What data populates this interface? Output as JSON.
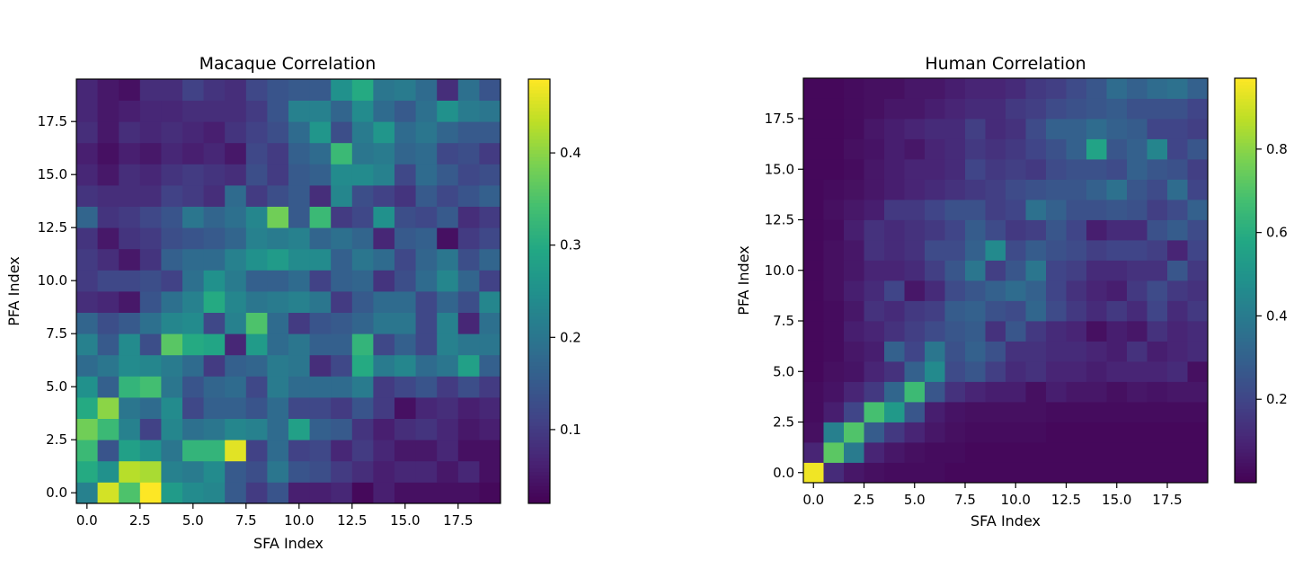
{
  "chart_data": [
    {
      "type": "heatmap",
      "title": "Macaque Correlation",
      "xlabel": "SFA Index",
      "ylabel": "PFA Index",
      "x_range": [
        -0.5,
        19.5
      ],
      "y_range": [
        -0.5,
        19.5
      ],
      "xticks": [
        0.0,
        2.5,
        5.0,
        7.5,
        10.0,
        12.5,
        15.0,
        17.5
      ],
      "xtick_labels": [
        "0.0",
        "2.5",
        "5.0",
        "7.5",
        "10.0",
        "12.5",
        "15.0",
        "17.5"
      ],
      "yticks": [
        0.0,
        2.5,
        5.0,
        7.5,
        10.0,
        12.5,
        15.0,
        17.5
      ],
      "ytick_labels": [
        "0.0",
        "2.5",
        "5.0",
        "7.5",
        "10.0",
        "12.5",
        "15.0",
        "17.5"
      ],
      "colormap": "viridis",
      "vmin": 0.02,
      "vmax": 0.48,
      "colorbar_ticks": [
        0.1,
        0.2,
        0.3,
        0.4
      ],
      "colorbar_tick_labels": [
        "0.1",
        "0.2",
        "0.3",
        "0.4"
      ],
      "rows_note": "rows listed from PFA index 0 upward; each row holds SFA index 0..19",
      "values": [
        [
          0.22,
          0.45,
          0.35,
          0.48,
          0.27,
          0.24,
          0.23,
          0.15,
          0.1,
          0.14,
          0.06,
          0.06,
          0.07,
          0.03,
          0.06,
          0.04,
          0.04,
          0.04,
          0.04,
          0.03
        ],
        [
          0.3,
          0.25,
          0.43,
          0.42,
          0.22,
          0.21,
          0.24,
          0.15,
          0.13,
          0.2,
          0.14,
          0.13,
          0.1,
          0.08,
          0.06,
          0.07,
          0.07,
          0.05,
          0.07,
          0.04
        ],
        [
          0.33,
          0.14,
          0.28,
          0.25,
          0.2,
          0.32,
          0.32,
          0.46,
          0.11,
          0.18,
          0.11,
          0.12,
          0.07,
          0.1,
          0.07,
          0.05,
          0.05,
          0.07,
          0.04,
          0.04
        ],
        [
          0.38,
          0.33,
          0.22,
          0.11,
          0.23,
          0.19,
          0.2,
          0.23,
          0.22,
          0.18,
          0.28,
          0.16,
          0.15,
          0.09,
          0.06,
          0.08,
          0.09,
          0.07,
          0.05,
          0.06
        ],
        [
          0.3,
          0.4,
          0.2,
          0.18,
          0.24,
          0.12,
          0.16,
          0.16,
          0.14,
          0.18,
          0.12,
          0.12,
          0.1,
          0.14,
          0.1,
          0.04,
          0.07,
          0.08,
          0.06,
          0.07
        ],
        [
          0.25,
          0.16,
          0.32,
          0.34,
          0.2,
          0.14,
          0.17,
          0.18,
          0.12,
          0.21,
          0.18,
          0.18,
          0.18,
          0.21,
          0.1,
          0.12,
          0.14,
          0.1,
          0.13,
          0.1
        ],
        [
          0.18,
          0.2,
          0.24,
          0.23,
          0.21,
          0.18,
          0.1,
          0.16,
          0.17,
          0.21,
          0.2,
          0.08,
          0.12,
          0.3,
          0.21,
          0.23,
          0.18,
          0.2,
          0.28,
          0.16
        ],
        [
          0.22,
          0.15,
          0.24,
          0.13,
          0.36,
          0.3,
          0.29,
          0.07,
          0.27,
          0.18,
          0.2,
          0.16,
          0.16,
          0.32,
          0.12,
          0.16,
          0.12,
          0.22,
          0.2,
          0.2
        ],
        [
          0.17,
          0.13,
          0.15,
          0.19,
          0.23,
          0.24,
          0.12,
          0.22,
          0.35,
          0.18,
          0.1,
          0.14,
          0.15,
          0.17,
          0.2,
          0.2,
          0.12,
          0.22,
          0.07,
          0.19
        ],
        [
          0.08,
          0.07,
          0.05,
          0.14,
          0.19,
          0.22,
          0.3,
          0.23,
          0.2,
          0.21,
          0.22,
          0.2,
          0.1,
          0.15,
          0.18,
          0.18,
          0.12,
          0.17,
          0.13,
          0.23
        ],
        [
          0.1,
          0.12,
          0.12,
          0.13,
          0.11,
          0.19,
          0.25,
          0.21,
          0.16,
          0.16,
          0.18,
          0.11,
          0.16,
          0.17,
          0.09,
          0.13,
          0.18,
          0.23,
          0.17,
          0.11
        ],
        [
          0.1,
          0.08,
          0.05,
          0.09,
          0.16,
          0.18,
          0.18,
          0.22,
          0.25,
          0.27,
          0.24,
          0.24,
          0.16,
          0.2,
          0.18,
          0.12,
          0.17,
          0.2,
          0.13,
          0.17
        ],
        [
          0.09,
          0.05,
          0.09,
          0.1,
          0.13,
          0.14,
          0.15,
          0.17,
          0.22,
          0.21,
          0.22,
          0.17,
          0.19,
          0.17,
          0.07,
          0.15,
          0.16,
          0.04,
          0.1,
          0.12
        ],
        [
          0.17,
          0.09,
          0.1,
          0.12,
          0.14,
          0.2,
          0.17,
          0.19,
          0.23,
          0.38,
          0.15,
          0.33,
          0.1,
          0.12,
          0.25,
          0.13,
          0.12,
          0.15,
          0.08,
          0.1
        ],
        [
          0.09,
          0.08,
          0.08,
          0.08,
          0.11,
          0.1,
          0.08,
          0.18,
          0.1,
          0.13,
          0.15,
          0.08,
          0.23,
          0.13,
          0.11,
          0.09,
          0.15,
          0.12,
          0.14,
          0.16
        ],
        [
          0.07,
          0.05,
          0.08,
          0.07,
          0.09,
          0.1,
          0.09,
          0.08,
          0.13,
          0.1,
          0.15,
          0.16,
          0.24,
          0.24,
          0.22,
          0.12,
          0.18,
          0.15,
          0.12,
          0.13
        ],
        [
          0.06,
          0.04,
          0.06,
          0.05,
          0.07,
          0.06,
          0.07,
          0.05,
          0.12,
          0.1,
          0.16,
          0.18,
          0.33,
          0.2,
          0.21,
          0.17,
          0.18,
          0.12,
          0.13,
          0.1
        ],
        [
          0.08,
          0.05,
          0.08,
          0.07,
          0.08,
          0.07,
          0.06,
          0.09,
          0.11,
          0.13,
          0.18,
          0.26,
          0.13,
          0.21,
          0.26,
          0.18,
          0.2,
          0.17,
          0.15,
          0.15
        ],
        [
          0.07,
          0.05,
          0.06,
          0.07,
          0.07,
          0.08,
          0.08,
          0.08,
          0.1,
          0.14,
          0.22,
          0.22,
          0.17,
          0.24,
          0.18,
          0.15,
          0.19,
          0.25,
          0.21,
          0.2
        ],
        [
          0.07,
          0.05,
          0.04,
          0.08,
          0.08,
          0.11,
          0.09,
          0.08,
          0.12,
          0.14,
          0.15,
          0.15,
          0.25,
          0.3,
          0.2,
          0.21,
          0.18,
          0.08,
          0.19,
          0.14
        ]
      ]
    },
    {
      "type": "heatmap",
      "title": "Human Correlation",
      "xlabel": "SFA Index",
      "ylabel": "PFA Index",
      "x_range": [
        -0.5,
        19.5
      ],
      "y_range": [
        -0.5,
        19.5
      ],
      "xticks": [
        0.0,
        2.5,
        5.0,
        7.5,
        10.0,
        12.5,
        15.0,
        17.5
      ],
      "xtick_labels": [
        "0.0",
        "2.5",
        "5.0",
        "7.5",
        "10.0",
        "12.5",
        "15.0",
        "17.5"
      ],
      "yticks": [
        0.0,
        2.5,
        5.0,
        7.5,
        10.0,
        12.5,
        15.0,
        17.5
      ],
      "ytick_labels": [
        "0.0",
        "2.5",
        "5.0",
        "7.5",
        "10.0",
        "12.5",
        "15.0",
        "17.5"
      ],
      "colormap": "viridis",
      "vmin": 0.0,
      "vmax": 0.97,
      "colorbar_ticks": [
        0.2,
        0.4,
        0.6,
        0.8
      ],
      "colorbar_tick_labels": [
        "0.2",
        "0.4",
        "0.6",
        "0.8"
      ],
      "rows_note": "rows listed from PFA index 0 upward; each row holds SFA index 0..19",
      "values": [
        [
          0.95,
          0.12,
          0.06,
          0.04,
          0.03,
          0.03,
          0.03,
          0.02,
          0.02,
          0.02,
          0.02,
          0.02,
          0.02,
          0.02,
          0.02,
          0.02,
          0.02,
          0.02,
          0.02,
          0.02
        ],
        [
          0.1,
          0.72,
          0.4,
          0.1,
          0.06,
          0.04,
          0.03,
          0.03,
          0.02,
          0.02,
          0.02,
          0.02,
          0.02,
          0.02,
          0.02,
          0.02,
          0.02,
          0.02,
          0.02,
          0.02
        ],
        [
          0.04,
          0.42,
          0.7,
          0.28,
          0.16,
          0.1,
          0.06,
          0.04,
          0.03,
          0.03,
          0.03,
          0.03,
          0.02,
          0.02,
          0.02,
          0.02,
          0.02,
          0.02,
          0.02,
          0.02
        ],
        [
          0.03,
          0.08,
          0.2,
          0.68,
          0.52,
          0.26,
          0.08,
          0.05,
          0.04,
          0.04,
          0.04,
          0.04,
          0.03,
          0.03,
          0.03,
          0.03,
          0.03,
          0.03,
          0.03,
          0.03
        ],
        [
          0.03,
          0.05,
          0.1,
          0.16,
          0.32,
          0.66,
          0.26,
          0.14,
          0.1,
          0.08,
          0.08,
          0.04,
          0.08,
          0.06,
          0.06,
          0.04,
          0.06,
          0.05,
          0.06,
          0.06
        ],
        [
          0.02,
          0.04,
          0.05,
          0.1,
          0.14,
          0.3,
          0.46,
          0.22,
          0.26,
          0.18,
          0.12,
          0.14,
          0.1,
          0.1,
          0.08,
          0.1,
          0.1,
          0.1,
          0.12,
          0.04
        ],
        [
          0.02,
          0.03,
          0.06,
          0.08,
          0.3,
          0.2,
          0.38,
          0.24,
          0.3,
          0.24,
          0.14,
          0.14,
          0.12,
          0.12,
          0.1,
          0.08,
          0.14,
          0.08,
          0.1,
          0.12
        ],
        [
          0.02,
          0.03,
          0.08,
          0.1,
          0.14,
          0.18,
          0.22,
          0.26,
          0.28,
          0.14,
          0.26,
          0.16,
          0.12,
          0.1,
          0.04,
          0.08,
          0.06,
          0.14,
          0.1,
          0.12
        ],
        [
          0.02,
          0.03,
          0.06,
          0.14,
          0.12,
          0.16,
          0.18,
          0.28,
          0.3,
          0.24,
          0.22,
          0.32,
          0.22,
          0.16,
          0.12,
          0.16,
          0.12,
          0.2,
          0.12,
          0.16
        ],
        [
          0.02,
          0.04,
          0.08,
          0.12,
          0.2,
          0.06,
          0.12,
          0.22,
          0.26,
          0.3,
          0.34,
          0.3,
          0.2,
          0.14,
          0.1,
          0.08,
          0.16,
          0.22,
          0.16,
          0.14
        ],
        [
          0.02,
          0.04,
          0.06,
          0.1,
          0.1,
          0.12,
          0.18,
          0.26,
          0.38,
          0.18,
          0.26,
          0.38,
          0.2,
          0.18,
          0.12,
          0.12,
          0.14,
          0.14,
          0.26,
          0.16
        ],
        [
          0.02,
          0.04,
          0.06,
          0.14,
          0.12,
          0.14,
          0.22,
          0.22,
          0.3,
          0.46,
          0.22,
          0.28,
          0.24,
          0.22,
          0.18,
          0.2,
          0.2,
          0.18,
          0.1,
          0.2
        ],
        [
          0.02,
          0.03,
          0.08,
          0.14,
          0.12,
          0.14,
          0.16,
          0.2,
          0.28,
          0.22,
          0.16,
          0.18,
          0.26,
          0.2,
          0.08,
          0.12,
          0.12,
          0.24,
          0.28,
          0.22
        ],
        [
          0.02,
          0.04,
          0.06,
          0.08,
          0.16,
          0.16,
          0.2,
          0.24,
          0.24,
          0.18,
          0.2,
          0.36,
          0.3,
          0.24,
          0.24,
          0.26,
          0.24,
          0.18,
          0.22,
          0.3
        ],
        [
          0.02,
          0.03,
          0.04,
          0.06,
          0.08,
          0.1,
          0.12,
          0.14,
          0.16,
          0.18,
          0.22,
          0.24,
          0.26,
          0.26,
          0.3,
          0.36,
          0.26,
          0.22,
          0.34,
          0.2
        ],
        [
          0.02,
          0.02,
          0.03,
          0.06,
          0.08,
          0.1,
          0.1,
          0.12,
          0.2,
          0.16,
          0.18,
          0.16,
          0.22,
          0.24,
          0.24,
          0.22,
          0.3,
          0.26,
          0.24,
          0.18
        ],
        [
          0.02,
          0.02,
          0.04,
          0.05,
          0.08,
          0.06,
          0.1,
          0.12,
          0.16,
          0.14,
          0.16,
          0.2,
          0.24,
          0.3,
          0.56,
          0.26,
          0.3,
          0.44,
          0.2,
          0.26
        ],
        [
          0.02,
          0.02,
          0.03,
          0.06,
          0.08,
          0.1,
          0.12,
          0.12,
          0.18,
          0.12,
          0.14,
          0.22,
          0.3,
          0.3,
          0.34,
          0.3,
          0.28,
          0.2,
          0.2,
          0.18
        ],
        [
          0.02,
          0.02,
          0.03,
          0.04,
          0.06,
          0.06,
          0.08,
          0.1,
          0.12,
          0.12,
          0.16,
          0.18,
          0.22,
          0.24,
          0.26,
          0.28,
          0.24,
          0.24,
          0.24,
          0.2
        ],
        [
          0.02,
          0.02,
          0.03,
          0.04,
          0.04,
          0.06,
          0.06,
          0.08,
          0.1,
          0.1,
          0.12,
          0.16,
          0.18,
          0.22,
          0.26,
          0.34,
          0.3,
          0.34,
          0.36,
          0.3
        ]
      ]
    }
  ]
}
